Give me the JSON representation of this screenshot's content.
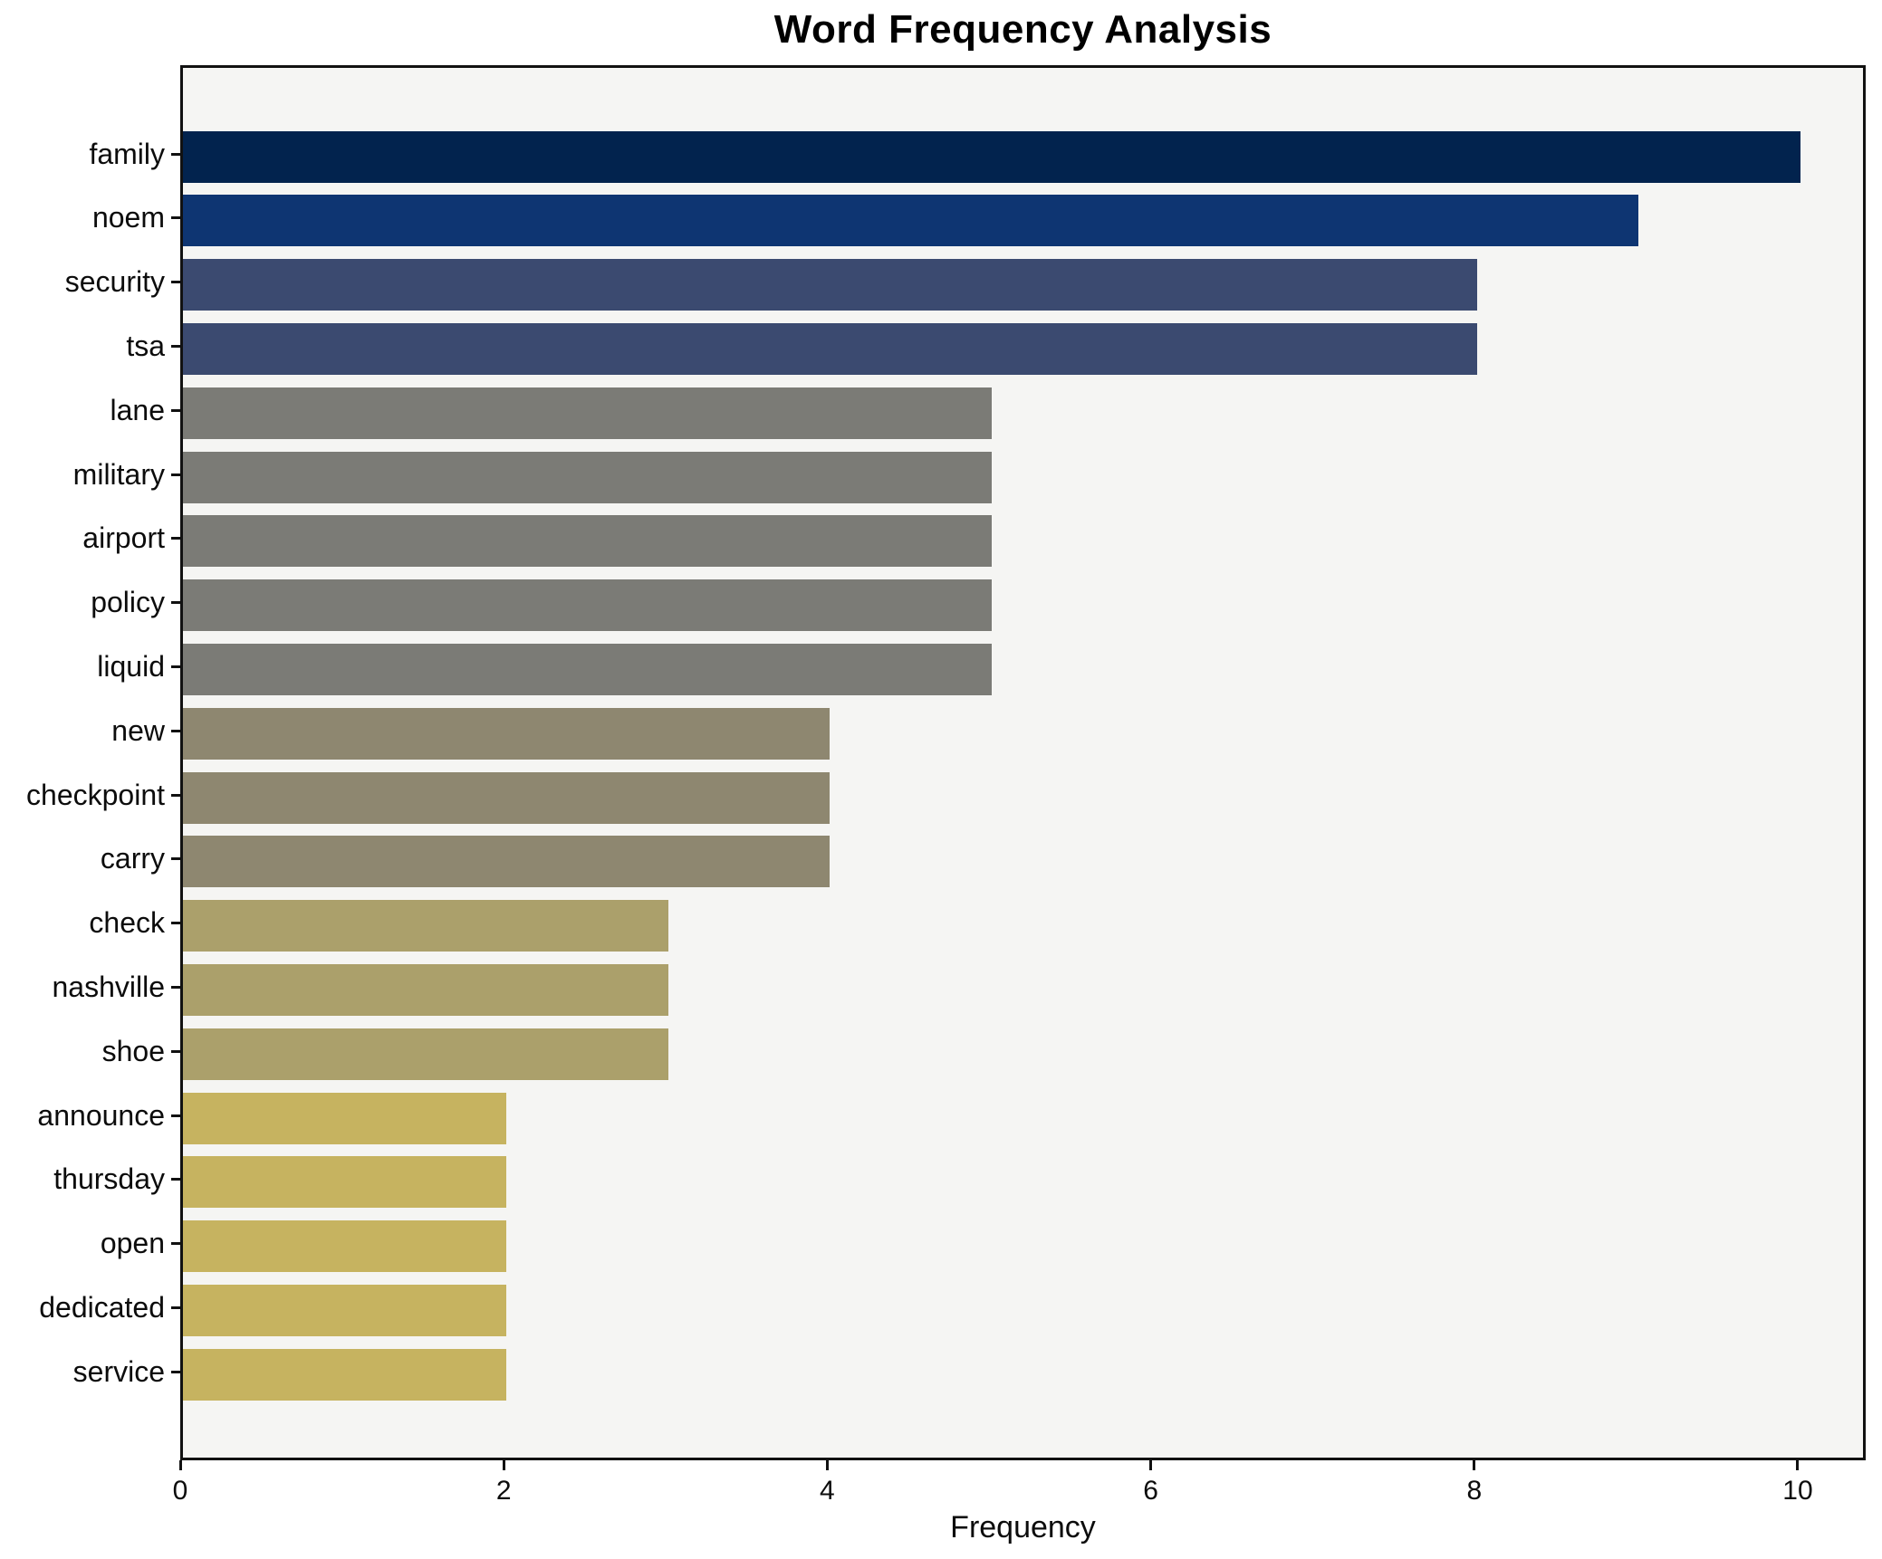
{
  "title": "Word Frequency Analysis",
  "x_axis": {
    "label": "Frequency",
    "ticks": [
      0,
      2,
      4,
      6,
      8,
      10
    ],
    "max": 10.42
  },
  "chart_data": {
    "type": "bar",
    "orientation": "horizontal",
    "title": "Word Frequency Analysis",
    "xlabel": "Frequency",
    "ylabel": "",
    "xlim": [
      0,
      10.42
    ],
    "xticks": [
      0,
      2,
      4,
      6,
      8,
      10
    ],
    "grid": false,
    "legend": false,
    "plot_background": "#f5f5f3",
    "figure_background": "#ffffff",
    "categories": [
      "family",
      "noem",
      "security",
      "tsa",
      "lane",
      "military",
      "airport",
      "policy",
      "liquid",
      "new",
      "checkpoint",
      "carry",
      "check",
      "nashville",
      "shoe",
      "announce",
      "thursday",
      "open",
      "dedicated",
      "service"
    ],
    "values": [
      10,
      9,
      8,
      8,
      5,
      5,
      5,
      5,
      5,
      4,
      4,
      4,
      3,
      3,
      3,
      2,
      2,
      2,
      2,
      2
    ],
    "bar_colors": [
      "#02234e",
      "#0e3572",
      "#3b4a70",
      "#3b4a70",
      "#7b7b76",
      "#7b7b76",
      "#7b7b76",
      "#7b7b76",
      "#7b7b76",
      "#8e8770",
      "#8e8770",
      "#8e8770",
      "#aba06b",
      "#aba06b",
      "#aba06b",
      "#c6b360",
      "#c6b360",
      "#c6b360",
      "#c6b360",
      "#c6b360"
    ],
    "value_color_map": {
      "10": "#02234e",
      "9": "#0e3572",
      "8": "#3b4a70",
      "5": "#7b7b76",
      "4": "#8e8770",
      "3": "#aba06b",
      "2": "#c6b360"
    }
  },
  "axis_style": {
    "spine_color": "#111111",
    "tick_color": "#111111",
    "label_color": "#0c0c0c"
  }
}
